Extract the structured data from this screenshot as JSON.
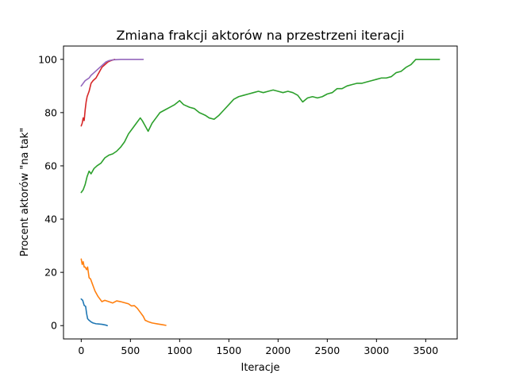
{
  "chart_data": {
    "type": "line",
    "title": "Zmiana frakcji aktorów na przestrzeni iteracji",
    "xlabel": "Iteracje",
    "ylabel": "Procent aktorów \"na tak\"",
    "xlim": [
      -180,
      3820
    ],
    "ylim": [
      -5,
      105
    ],
    "xticks": [
      0,
      500,
      1000,
      1500,
      2000,
      2500,
      3000,
      3500
    ],
    "yticks": [
      0,
      20,
      40,
      60,
      80,
      100
    ],
    "grid": false,
    "series": [
      {
        "color": "#1f77b4",
        "points": [
          [
            0,
            10
          ],
          [
            15,
            9.5
          ],
          [
            30,
            7.6
          ],
          [
            45,
            7.2
          ],
          [
            55,
            4.5
          ],
          [
            65,
            2.6
          ],
          [
            80,
            2.0
          ],
          [
            100,
            1.4
          ],
          [
            120,
            1.0
          ],
          [
            150,
            0.7
          ],
          [
            180,
            0.6
          ],
          [
            210,
            0.5
          ],
          [
            250,
            0.2
          ],
          [
            265,
            0.0
          ]
        ]
      },
      {
        "color": "#ff7f0e",
        "points": [
          [
            0,
            25
          ],
          [
            10,
            23
          ],
          [
            20,
            24
          ],
          [
            30,
            22
          ],
          [
            40,
            22
          ],
          [
            55,
            21
          ],
          [
            65,
            22
          ],
          [
            80,
            18
          ],
          [
            95,
            17.5
          ],
          [
            110,
            16
          ],
          [
            125,
            14.5
          ],
          [
            140,
            13
          ],
          [
            155,
            12
          ],
          [
            170,
            11
          ],
          [
            190,
            10
          ],
          [
            210,
            9
          ],
          [
            240,
            9.5
          ],
          [
            280,
            9
          ],
          [
            320,
            8.5
          ],
          [
            360,
            9.3
          ],
          [
            400,
            9
          ],
          [
            440,
            8.6
          ],
          [
            480,
            8.2
          ],
          [
            510,
            7.4
          ],
          [
            540,
            7.5
          ],
          [
            570,
            6.5
          ],
          [
            600,
            5
          ],
          [
            630,
            3.5
          ],
          [
            650,
            2
          ],
          [
            680,
            1.5
          ],
          [
            720,
            1
          ],
          [
            780,
            0.6
          ],
          [
            830,
            0.3
          ],
          [
            860,
            0.1
          ]
        ]
      },
      {
        "color": "#2ca02c",
        "points": [
          [
            0,
            50
          ],
          [
            20,
            51
          ],
          [
            40,
            53
          ],
          [
            60,
            56
          ],
          [
            80,
            58
          ],
          [
            100,
            57
          ],
          [
            130,
            59
          ],
          [
            160,
            60
          ],
          [
            200,
            61
          ],
          [
            240,
            63
          ],
          [
            280,
            64
          ],
          [
            320,
            64.5
          ],
          [
            360,
            65.5
          ],
          [
            400,
            67
          ],
          [
            440,
            69
          ],
          [
            480,
            72
          ],
          [
            520,
            74
          ],
          [
            560,
            76
          ],
          [
            600,
            78
          ],
          [
            620,
            77
          ],
          [
            650,
            75
          ],
          [
            680,
            73
          ],
          [
            720,
            76
          ],
          [
            760,
            78
          ],
          [
            800,
            80
          ],
          [
            850,
            81
          ],
          [
            900,
            82
          ],
          [
            950,
            83
          ],
          [
            1000,
            84.5
          ],
          [
            1040,
            83
          ],
          [
            1100,
            82
          ],
          [
            1150,
            81.5
          ],
          [
            1200,
            80
          ],
          [
            1260,
            79
          ],
          [
            1300,
            78
          ],
          [
            1350,
            77.5
          ],
          [
            1400,
            79
          ],
          [
            1450,
            81
          ],
          [
            1500,
            83
          ],
          [
            1550,
            85
          ],
          [
            1600,
            86
          ],
          [
            1650,
            86.5
          ],
          [
            1700,
            87
          ],
          [
            1750,
            87.5
          ],
          [
            1800,
            88
          ],
          [
            1850,
            87.5
          ],
          [
            1900,
            88
          ],
          [
            1950,
            88.5
          ],
          [
            2000,
            88
          ],
          [
            2050,
            87.5
          ],
          [
            2100,
            88
          ],
          [
            2150,
            87.5
          ],
          [
            2200,
            86.5
          ],
          [
            2250,
            84
          ],
          [
            2300,
            85.5
          ],
          [
            2350,
            86
          ],
          [
            2400,
            85.5
          ],
          [
            2450,
            86
          ],
          [
            2500,
            87
          ],
          [
            2550,
            87.5
          ],
          [
            2600,
            89
          ],
          [
            2650,
            89
          ],
          [
            2700,
            90
          ],
          [
            2750,
            90.5
          ],
          [
            2800,
            91
          ],
          [
            2850,
            91
          ],
          [
            2900,
            91.5
          ],
          [
            2950,
            92
          ],
          [
            3000,
            92.5
          ],
          [
            3050,
            93
          ],
          [
            3100,
            93
          ],
          [
            3150,
            93.5
          ],
          [
            3200,
            95
          ],
          [
            3250,
            95.5
          ],
          [
            3300,
            97
          ],
          [
            3350,
            98
          ],
          [
            3400,
            100
          ],
          [
            3500,
            100
          ],
          [
            3600,
            100
          ],
          [
            3640,
            100
          ]
        ]
      },
      {
        "color": "#d62728",
        "points": [
          [
            0,
            75
          ],
          [
            10,
            76
          ],
          [
            20,
            78
          ],
          [
            30,
            77
          ],
          [
            40,
            81
          ],
          [
            50,
            84
          ],
          [
            60,
            86
          ],
          [
            80,
            88
          ],
          [
            100,
            91
          ],
          [
            120,
            92
          ],
          [
            150,
            93
          ],
          [
            180,
            95
          ],
          [
            210,
            97
          ],
          [
            240,
            98
          ],
          [
            270,
            99
          ],
          [
            300,
            99.5
          ],
          [
            340,
            100
          ]
        ]
      },
      {
        "color": "#9467bd",
        "points": [
          [
            0,
            90
          ],
          [
            20,
            91
          ],
          [
            40,
            92
          ],
          [
            60,
            92.5
          ],
          [
            80,
            93
          ],
          [
            100,
            94
          ],
          [
            130,
            95
          ],
          [
            160,
            96
          ],
          [
            190,
            97
          ],
          [
            220,
            98
          ],
          [
            250,
            99
          ],
          [
            280,
            99.5
          ],
          [
            320,
            99.8
          ],
          [
            400,
            100
          ],
          [
            500,
            100
          ],
          [
            580,
            100
          ],
          [
            630,
            100
          ]
        ]
      }
    ]
  }
}
